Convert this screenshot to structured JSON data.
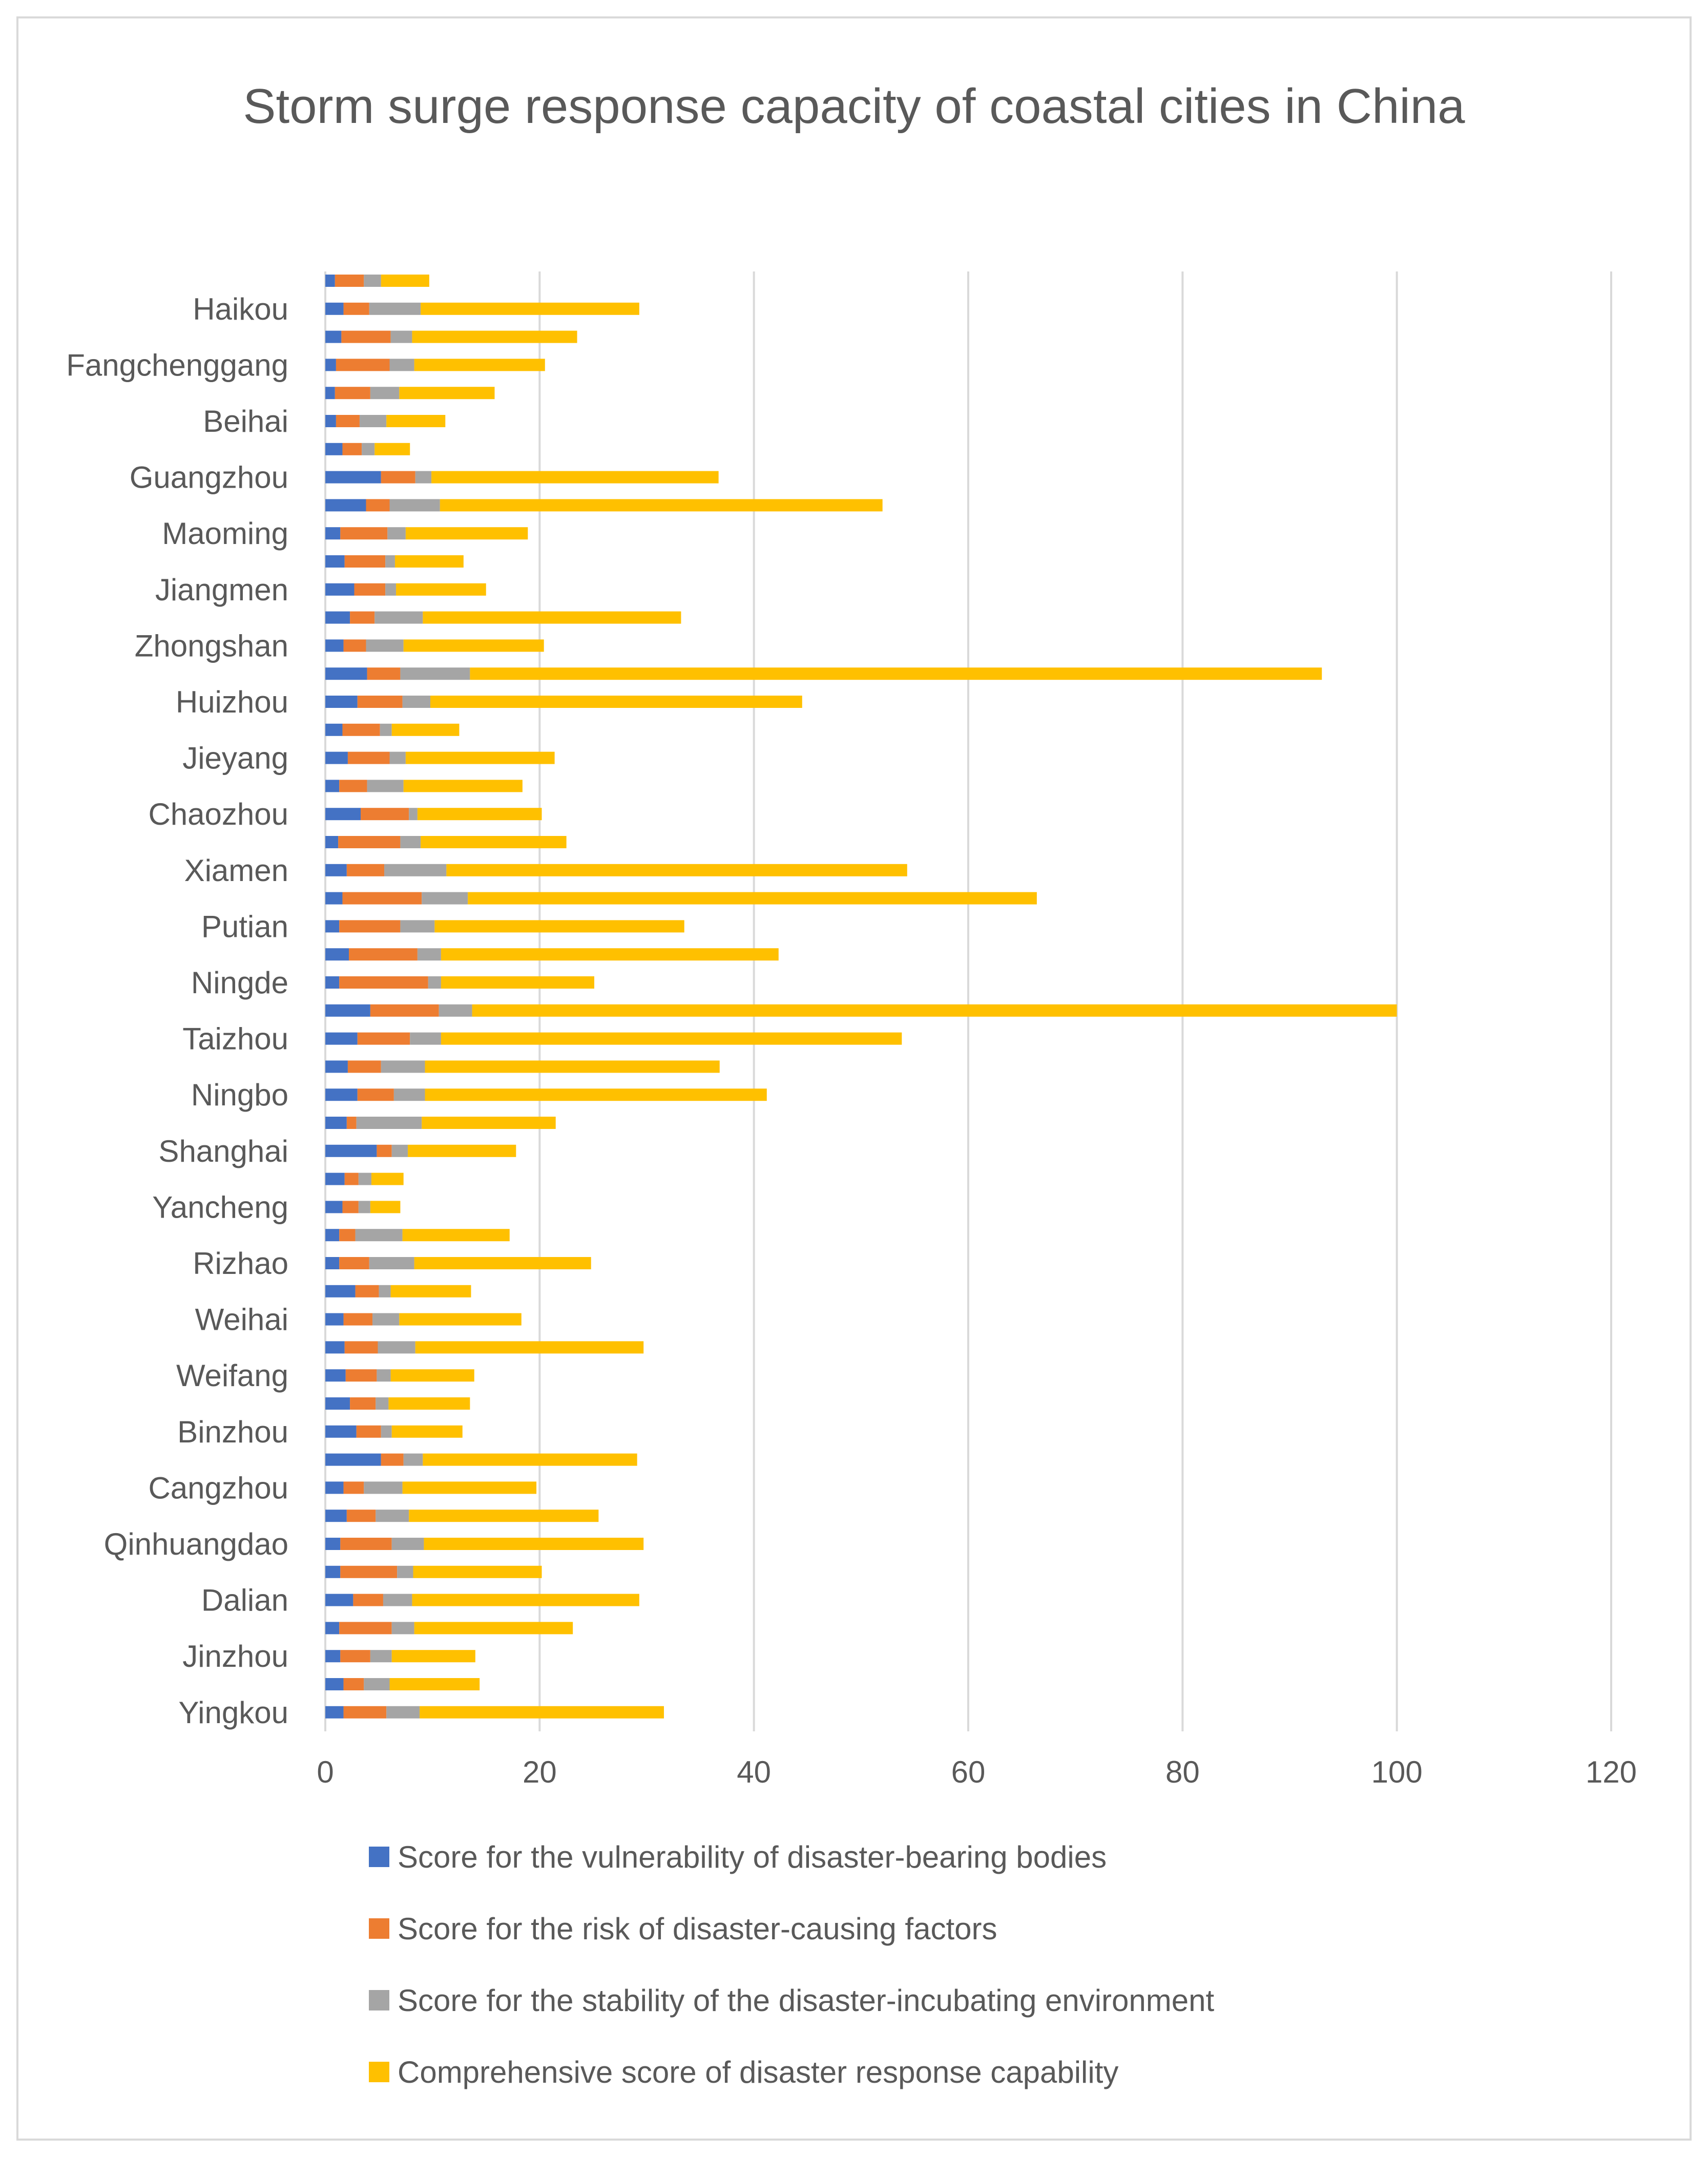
{
  "chart_data": {
    "type": "bar",
    "orientation": "horizontal",
    "stacked": true,
    "title": "Storm surge response capacity of coastal cities in China",
    "xlim": [
      0,
      120
    ],
    "x_ticks": [
      0,
      20,
      40,
      60,
      80,
      100,
      120
    ],
    "grid": "vertical",
    "legend_position": "bottom",
    "categories": [
      "",
      "Haikou",
      "",
      "Fangchenggang",
      "",
      "Beihai",
      "",
      "Guangzhou",
      "",
      "Maoming",
      "",
      "Jiangmen",
      "",
      "Zhongshan",
      "",
      "Huizhou",
      "",
      "Jieyang",
      "",
      "Chaozhou",
      "",
      "Xiamen",
      "",
      "Putian",
      "",
      "Ningde",
      "",
      "Taizhou",
      "",
      "Ningbo",
      "",
      "Shanghai",
      "",
      "Yancheng",
      "",
      "Rizhao",
      "",
      "Weihai",
      "",
      "Weifang",
      "",
      "Binzhou",
      "",
      "Cangzhou",
      "",
      "Qinhuangdao",
      "",
      "Dalian",
      "",
      "Jinzhou",
      "",
      "Yingkou"
    ],
    "series": [
      {
        "name": "Score for the vulnerability of disaster-bearing bodies",
        "color": "#4472C4",
        "values": [
          0.9,
          1.7,
          1.5,
          1.0,
          0.9,
          1.0,
          1.6,
          5.2,
          3.8,
          1.4,
          1.8,
          2.7,
          2.3,
          1.7,
          3.9,
          3.0,
          1.6,
          2.1,
          1.3,
          3.3,
          1.2,
          2.0,
          1.6,
          1.3,
          2.2,
          1.3,
          4.2,
          3.0,
          2.1,
          3.0,
          2.0,
          4.8,
          1.8,
          1.6,
          1.3,
          1.3,
          2.8,
          1.7,
          1.8,
          1.9,
          2.3,
          2.9,
          5.2,
          1.7,
          2.0,
          1.4,
          1.4,
          2.6,
          1.3,
          1.4,
          1.7,
          1.7
        ]
      },
      {
        "name": "Score for the risk of disaster-causing factors",
        "color": "#ED7D31",
        "values": [
          2.7,
          2.4,
          4.6,
          5.0,
          3.3,
          2.2,
          1.8,
          3.2,
          2.2,
          4.4,
          3.8,
          2.9,
          2.3,
          2.1,
          3.1,
          4.2,
          3.5,
          3.9,
          2.6,
          4.5,
          5.8,
          3.5,
          7.4,
          5.7,
          6.4,
          8.3,
          6.4,
          4.9,
          3.1,
          3.4,
          0.9,
          1.4,
          1.3,
          1.5,
          1.5,
          2.8,
          2.2,
          2.7,
          3.1,
          2.9,
          2.4,
          2.3,
          2.1,
          1.9,
          2.7,
          4.8,
          5.3,
          2.8,
          4.9,
          2.8,
          1.9,
          4.0
        ]
      },
      {
        "name": "Score for the stability of the disaster-incubating environment",
        "color": "#A5A5A5",
        "values": [
          1.6,
          4.8,
          2.0,
          2.3,
          2.7,
          2.5,
          1.2,
          1.5,
          4.7,
          1.7,
          0.9,
          1.0,
          4.5,
          3.5,
          6.5,
          2.6,
          1.1,
          1.5,
          3.4,
          0.8,
          1.9,
          5.8,
          4.3,
          3.2,
          2.2,
          1.2,
          3.1,
          2.9,
          4.1,
          2.9,
          6.1,
          1.5,
          1.2,
          1.1,
          4.4,
          4.2,
          1.1,
          2.5,
          3.5,
          1.3,
          1.2,
          1.0,
          1.8,
          3.6,
          3.1,
          3.0,
          1.5,
          2.7,
          2.1,
          2.0,
          2.4,
          3.1
        ]
      },
      {
        "name": "Comprehensive score of disaster response capability",
        "color": "#FFC000",
        "values": [
          4.5,
          20.4,
          15.4,
          12.2,
          8.9,
          5.5,
          3.3,
          26.8,
          41.3,
          11.4,
          6.4,
          8.4,
          24.1,
          13.1,
          79.5,
          34.7,
          6.3,
          13.9,
          11.1,
          11.6,
          13.6,
          43.0,
          53.1,
          23.3,
          31.5,
          14.3,
          86.3,
          43.0,
          27.5,
          31.9,
          12.5,
          10.1,
          3.0,
          2.8,
          10.0,
          16.5,
          7.5,
          11.4,
          21.3,
          7.8,
          7.6,
          6.6,
          20.0,
          12.5,
          17.7,
          20.5,
          12.0,
          21.2,
          14.8,
          7.8,
          8.4,
          22.8
        ]
      }
    ]
  }
}
